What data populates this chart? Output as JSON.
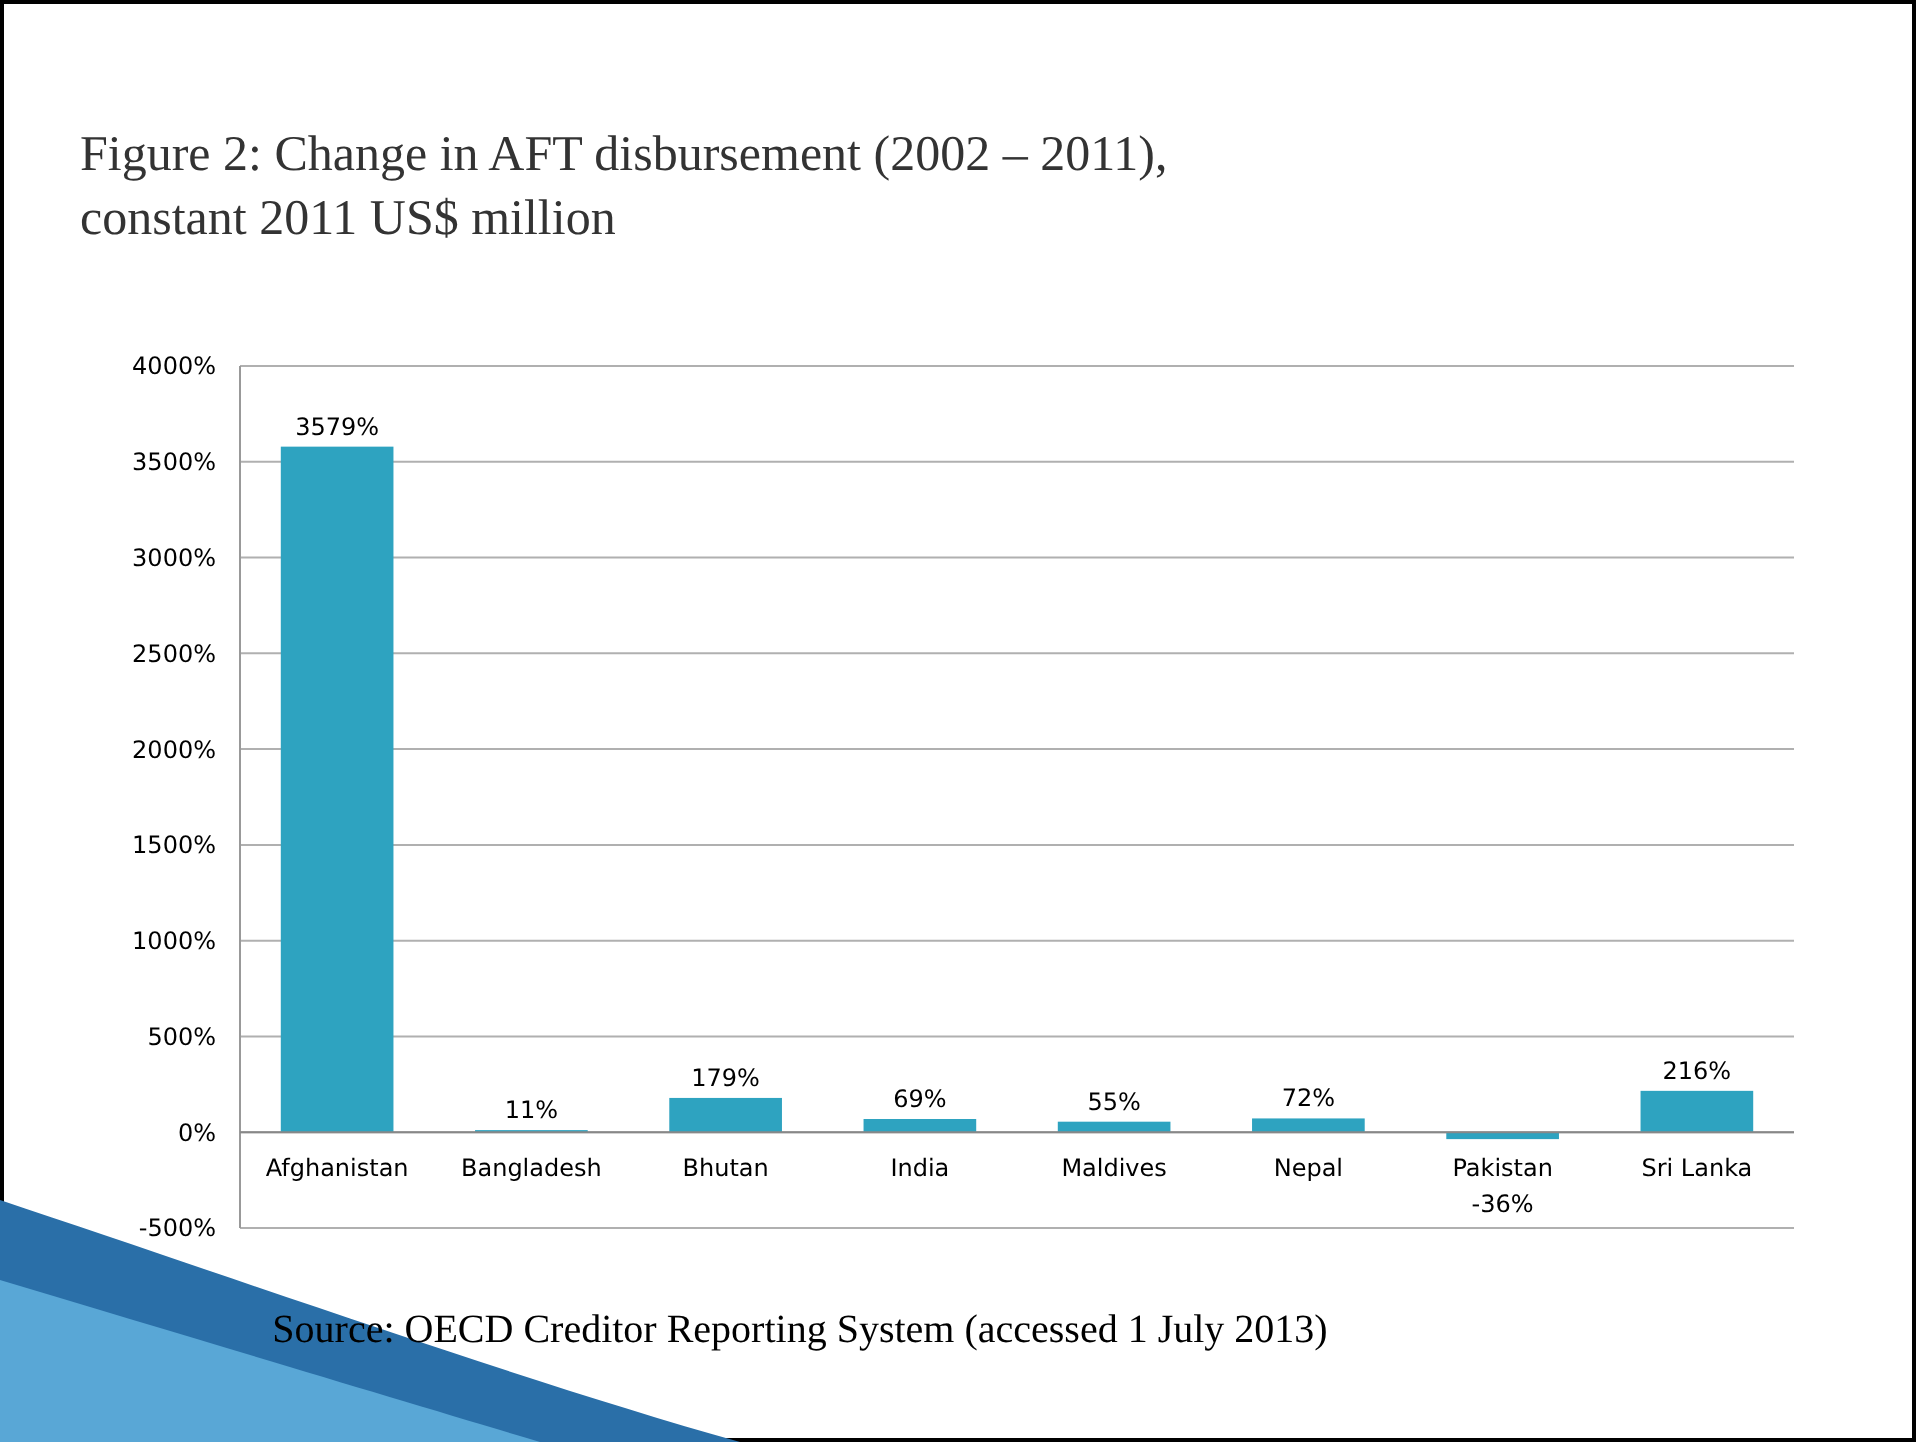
{
  "chart_data": {
    "type": "bar",
    "title": "Figure 2: Change in AFT disbursement (2002 – 2011), constant 2011 US$ million",
    "categories": [
      "Afghanistan",
      "Bangladesh",
      "Bhutan",
      "India",
      "Maldives",
      "Nepal",
      "Pakistan",
      "Sri Lanka"
    ],
    "values": [
      3579,
      11,
      179,
      69,
      55,
      72,
      -36,
      216
    ],
    "value_labels": [
      "3579%",
      "11%",
      "179%",
      "69%",
      "55%",
      "72%",
      "-36%",
      "216%"
    ],
    "color": "#2ea3c0",
    "ylim": [
      -500,
      4000
    ],
    "yticks": [
      {
        "value": -500,
        "label": "-500%"
      },
      {
        "value": 0,
        "label": "0%"
      },
      {
        "value": 500,
        "label": "500%"
      },
      {
        "value": 1000,
        "label": "1000%"
      },
      {
        "value": 1500,
        "label": "1500%"
      },
      {
        "value": 2000,
        "label": "2000%"
      },
      {
        "value": 2500,
        "label": "2500%"
      },
      {
        "value": 3000,
        "label": "3000%"
      },
      {
        "value": 3500,
        "label": "3500%"
      },
      {
        "value": 4000,
        "label": "4000%"
      }
    ],
    "grid": "y",
    "annotations": [
      "Source: OECD Creditor Reporting System (accessed 1 July 2013)"
    ]
  }
}
